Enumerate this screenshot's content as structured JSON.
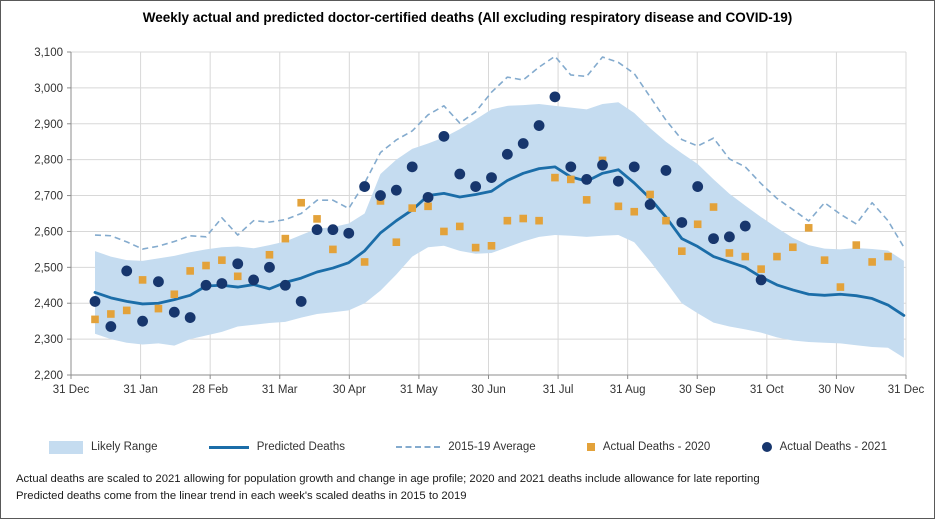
{
  "frame": {
    "title": "Weekly actual and predicted doctor-certified deaths (All excluding respiratory disease and COVID-19)"
  },
  "legend": {
    "items": [
      {
        "label": "Likely Range",
        "marker": "band-swatch"
      },
      {
        "label": "Predicted Deaths",
        "marker": "solid-line-swatch"
      },
      {
        "label": "2015-19 Average",
        "marker": "dashed-line-swatch"
      },
      {
        "label": "Actual Deaths - 2020",
        "marker": "orange-square-swatch"
      },
      {
        "label": "Actual Deaths - 2021",
        "marker": "navy-circle-swatch"
      }
    ]
  },
  "footnotes": {
    "line1": "Actual deaths are scaled to 2021 allowing for population growth and change in age profile; 2020 and 2021 deaths include allowance for late reporting",
    "line2": "Predicted deaths come from the linear trend in each week's scaled deaths in 2015 to 2019"
  },
  "colors": {
    "band": "#c5dcf0",
    "predicted": "#1b6da8",
    "average": "#84abce",
    "actual2020": "#e3a23a",
    "actual2021": "#17366d",
    "grid": "#d8d8d8",
    "axis": "#8c8c8c",
    "tick_text": "#333333"
  },
  "chart_data": {
    "type": "line",
    "title": "Weekly actual and predicted doctor-certified deaths (All excluding respiratory disease and COVID-19)",
    "xlabel": "",
    "ylabel": "",
    "x_unit": "week ending (Jan to Dec of one year)",
    "x_tick_labels": [
      "31 Dec",
      "31 Jan",
      "28 Feb",
      "31 Mar",
      "30 Apr",
      "31 May",
      "30 Jun",
      "31 Jul",
      "31 Aug",
      "30 Sep",
      "31 Oct",
      "30 Nov",
      "31 Dec"
    ],
    "y_axis": {
      "min": 2200,
      "max": 3100,
      "tick_step": 100,
      "tick_labels": [
        "2,200",
        "2,300",
        "2,400",
        "2,500",
        "2,600",
        "2,700",
        "2,800",
        "2,900",
        "3,000",
        "3,100"
      ]
    },
    "grid": true,
    "legend_position": "bottom",
    "weeks": 52,
    "series": [
      {
        "name": "Likely Range (upper bound)",
        "type": "area-bound",
        "values": [
          2545,
          2530,
          2520,
          2518,
          2525,
          2532,
          2542,
          2550,
          2556,
          2558,
          2553,
          2562,
          2572,
          2590,
          2608,
          2612,
          2622,
          2650,
          2760,
          2800,
          2830,
          2845,
          2862,
          2885,
          2912,
          2940,
          2950,
          2952,
          2955,
          2950,
          2945,
          2940,
          2955,
          2960,
          2930,
          2888,
          2850,
          2818,
          2788,
          2745,
          2705,
          2672,
          2640,
          2610,
          2582,
          2562,
          2552,
          2550,
          2554,
          2551,
          2547,
          2518
        ]
      },
      {
        "name": "Likely Range (lower bound)",
        "type": "area-bound",
        "values": [
          2315,
          2300,
          2290,
          2285,
          2288,
          2282,
          2300,
          2310,
          2320,
          2335,
          2340,
          2345,
          2348,
          2360,
          2370,
          2375,
          2380,
          2400,
          2435,
          2480,
          2530,
          2556,
          2560,
          2546,
          2538,
          2540,
          2556,
          2572,
          2585,
          2590,
          2588,
          2585,
          2588,
          2590,
          2570,
          2517,
          2460,
          2400,
          2372,
          2346,
          2335,
          2327,
          2318,
          2305,
          2296,
          2292,
          2290,
          2288,
          2283,
          2278,
          2276,
          2248
        ]
      },
      {
        "name": "Predicted Deaths",
        "type": "line",
        "values": [
          2430,
          2415,
          2405,
          2398,
          2400,
          2410,
          2422,
          2448,
          2450,
          2445,
          2452,
          2440,
          2458,
          2470,
          2487,
          2498,
          2513,
          2546,
          2596,
          2630,
          2660,
          2700,
          2706,
          2696,
          2703,
          2712,
          2742,
          2762,
          2775,
          2780,
          2752,
          2740,
          2762,
          2772,
          2735,
          2692,
          2640,
          2580,
          2558,
          2530,
          2515,
          2500,
          2473,
          2451,
          2437,
          2425,
          2422,
          2425,
          2421,
          2413,
          2395,
          2366
        ]
      },
      {
        "name": "2015-19 Average",
        "type": "dashed-line",
        "values": [
          2590,
          2588,
          2571,
          2551,
          2559,
          2572,
          2588,
          2585,
          2638,
          2590,
          2630,
          2626,
          2633,
          2650,
          2687,
          2687,
          2664,
          2735,
          2820,
          2855,
          2880,
          2925,
          2950,
          2902,
          2933,
          2988,
          3030,
          3022,
          3058,
          3088,
          3036,
          3032,
          3086,
          3071,
          3040,
          2975,
          2910,
          2856,
          2838,
          2860,
          2802,
          2780,
          2733,
          2692,
          2661,
          2629,
          2680,
          2648,
          2621,
          2680,
          2630,
          2556
        ]
      },
      {
        "name": "Actual Deaths - 2020",
        "type": "scatter-square",
        "values": [
          2355,
          2370,
          2380,
          2465,
          2385,
          2425,
          2490,
          2505,
          2520,
          2475,
          null,
          2535,
          2580,
          2680,
          2635,
          2550,
          null,
          2515,
          2685,
          2570,
          2665,
          2670,
          2600,
          2614,
          2555,
          2560,
          2630,
          2636,
          2630,
          2750,
          2745,
          2688,
          2798,
          2670,
          2655,
          2703,
          2630,
          2545,
          2620,
          2668,
          2540,
          2530,
          2495,
          2530,
          2556,
          2610,
          2520,
          2445,
          2562,
          2515,
          2530,
          null
        ]
      },
      {
        "name": "Actual Deaths - 2021",
        "type": "scatter-circle",
        "values": [
          2405,
          2335,
          2490,
          2350,
          2460,
          2375,
          2360,
          2450,
          2455,
          2510,
          2465,
          2500,
          2450,
          2405,
          2605,
          2605,
          2595,
          2725,
          2700,
          2715,
          2780,
          2695,
          2865,
          2760,
          2725,
          2750,
          2815,
          2845,
          2895,
          2975,
          2780,
          2745,
          2785,
          2740,
          2780,
          2675,
          2770,
          2625,
          2725,
          2580,
          2585,
          2615,
          2465,
          null,
          null,
          null,
          null,
          null,
          null,
          null,
          null,
          null
        ]
      }
    ]
  }
}
